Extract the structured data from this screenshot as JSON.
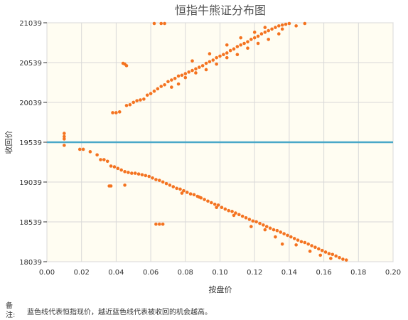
{
  "chart_data": {
    "type": "scatter",
    "title": "恒指牛熊证分布图",
    "xlabel": "按盘价",
    "ylabel": "收回价",
    "xlim": [
      0,
      0.2
    ],
    "ylim": [
      18039,
      21039
    ],
    "xticks": [
      "0.00",
      "0.02",
      "0.04",
      "0.06",
      "0.08",
      "0.10",
      "0.12",
      "0.14",
      "0.16",
      "0.18",
      "0.20"
    ],
    "yticks": [
      "18039",
      "18539",
      "19039",
      "19539",
      "20039",
      "20539",
      "21039"
    ],
    "grid": true,
    "reference_line": {
      "value": 19539,
      "color": "#4aa8c8"
    },
    "colors": {
      "point": "#f47320",
      "plot_bg": "#fffdf2",
      "grid": "#d8d8d8"
    },
    "series": [
      {
        "points": [
          [
            0.01,
            19650
          ],
          [
            0.01,
            19610
          ],
          [
            0.01,
            19580
          ],
          [
            0.01,
            19500
          ],
          [
            0.019,
            19450
          ],
          [
            0.021,
            19450
          ],
          [
            0.025,
            19420
          ],
          [
            0.029,
            19380
          ],
          [
            0.031,
            19320
          ],
          [
            0.033,
            19320
          ],
          [
            0.035,
            19300
          ],
          [
            0.037,
            19240
          ],
          [
            0.039,
            19230
          ],
          [
            0.041,
            19210
          ],
          [
            0.043,
            19190
          ],
          [
            0.045,
            19170
          ],
          [
            0.047,
            19160
          ],
          [
            0.049,
            19150
          ],
          [
            0.051,
            19150
          ],
          [
            0.053,
            19140
          ],
          [
            0.055,
            19130
          ],
          [
            0.057,
            19120
          ],
          [
            0.059,
            19110
          ],
          [
            0.061,
            19090
          ],
          [
            0.063,
            19070
          ],
          [
            0.065,
            19060
          ],
          [
            0.067,
            19040
          ],
          [
            0.069,
            19020
          ],
          [
            0.071,
            19000
          ],
          [
            0.073,
            18980
          ],
          [
            0.075,
            18960
          ],
          [
            0.077,
            18950
          ],
          [
            0.079,
            18930
          ],
          [
            0.081,
            18910
          ],
          [
            0.083,
            18890
          ],
          [
            0.085,
            18880
          ],
          [
            0.087,
            18860
          ],
          [
            0.089,
            18840
          ],
          [
            0.091,
            18820
          ],
          [
            0.093,
            18800
          ],
          [
            0.095,
            18780
          ],
          [
            0.097,
            18760
          ],
          [
            0.099,
            18750
          ],
          [
            0.101,
            18720
          ],
          [
            0.103,
            18700
          ],
          [
            0.105,
            18680
          ],
          [
            0.107,
            18670
          ],
          [
            0.109,
            18650
          ],
          [
            0.111,
            18630
          ],
          [
            0.113,
            18610
          ],
          [
            0.115,
            18590
          ],
          [
            0.117,
            18570
          ],
          [
            0.119,
            18550
          ],
          [
            0.121,
            18540
          ],
          [
            0.123,
            18520
          ],
          [
            0.125,
            18500
          ],
          [
            0.127,
            18480
          ],
          [
            0.129,
            18460
          ],
          [
            0.131,
            18440
          ],
          [
            0.133,
            18430
          ],
          [
            0.135,
            18410
          ],
          [
            0.137,
            18390
          ],
          [
            0.139,
            18370
          ],
          [
            0.141,
            18350
          ],
          [
            0.143,
            18330
          ],
          [
            0.145,
            18310
          ],
          [
            0.147,
            18290
          ],
          [
            0.149,
            18280
          ],
          [
            0.151,
            18260
          ],
          [
            0.153,
            18240
          ],
          [
            0.155,
            18220
          ],
          [
            0.157,
            18200
          ],
          [
            0.159,
            18180
          ],
          [
            0.161,
            18160
          ],
          [
            0.163,
            18140
          ],
          [
            0.165,
            18130
          ],
          [
            0.167,
            18110
          ],
          [
            0.169,
            18090
          ],
          [
            0.171,
            18070
          ],
          [
            0.173,
            18060
          ],
          [
            0.036,
            18990
          ],
          [
            0.037,
            18990
          ],
          [
            0.045,
            19000
          ],
          [
            0.063,
            18510
          ],
          [
            0.065,
            18510
          ],
          [
            0.067,
            18510
          ],
          [
            0.078,
            18900
          ],
          [
            0.088,
            18850
          ],
          [
            0.098,
            18720
          ],
          [
            0.108,
            18620
          ],
          [
            0.118,
            18480
          ],
          [
            0.126,
            18440
          ],
          [
            0.132,
            18350
          ],
          [
            0.136,
            18260
          ],
          [
            0.144,
            18250
          ],
          [
            0.152,
            18170
          ],
          [
            0.158,
            18120
          ],
          [
            0.164,
            18080
          ],
          [
            0.044,
            20530
          ],
          [
            0.045,
            20520
          ],
          [
            0.046,
            20500
          ],
          [
            0.038,
            19910
          ],
          [
            0.04,
            19910
          ],
          [
            0.042,
            19920
          ],
          [
            0.046,
            20000
          ],
          [
            0.048,
            20010
          ],
          [
            0.05,
            20040
          ],
          [
            0.052,
            20060
          ],
          [
            0.054,
            20070
          ],
          [
            0.056,
            20080
          ],
          [
            0.058,
            20130
          ],
          [
            0.06,
            20150
          ],
          [
            0.062,
            20180
          ],
          [
            0.064,
            20210
          ],
          [
            0.066,
            20240
          ],
          [
            0.068,
            20260
          ],
          [
            0.07,
            20300
          ],
          [
            0.072,
            20320
          ],
          [
            0.074,
            20340
          ],
          [
            0.076,
            20370
          ],
          [
            0.078,
            20380
          ],
          [
            0.08,
            20400
          ],
          [
            0.082,
            20420
          ],
          [
            0.084,
            20440
          ],
          [
            0.086,
            20460
          ],
          [
            0.088,
            20480
          ],
          [
            0.09,
            20500
          ],
          [
            0.092,
            20530
          ],
          [
            0.094,
            20550
          ],
          [
            0.096,
            20570
          ],
          [
            0.098,
            20600
          ],
          [
            0.1,
            20620
          ],
          [
            0.102,
            20640
          ],
          [
            0.104,
            20660
          ],
          [
            0.106,
            20690
          ],
          [
            0.108,
            20710
          ],
          [
            0.11,
            20740
          ],
          [
            0.112,
            20760
          ],
          [
            0.114,
            20780
          ],
          [
            0.116,
            20800
          ],
          [
            0.118,
            20830
          ],
          [
            0.12,
            20850
          ],
          [
            0.122,
            20870
          ],
          [
            0.124,
            20900
          ],
          [
            0.126,
            20920
          ],
          [
            0.128,
            20940
          ],
          [
            0.13,
            20960
          ],
          [
            0.132,
            20980
          ],
          [
            0.134,
            21000
          ],
          [
            0.136,
            21010
          ],
          [
            0.138,
            21020
          ],
          [
            0.14,
            21030
          ],
          [
            0.062,
            21030
          ],
          [
            0.066,
            21030
          ],
          [
            0.068,
            21030
          ],
          [
            0.149,
            21030
          ],
          [
            0.072,
            20230
          ],
          [
            0.076,
            20270
          ],
          [
            0.08,
            20350
          ],
          [
            0.086,
            20410
          ],
          [
            0.092,
            20450
          ],
          [
            0.098,
            20520
          ],
          [
            0.104,
            20600
          ],
          [
            0.11,
            20640
          ],
          [
            0.116,
            20720
          ],
          [
            0.122,
            20780
          ],
          [
            0.128,
            20830
          ],
          [
            0.134,
            20900
          ],
          [
            0.084,
            20560
          ],
          [
            0.094,
            20650
          ],
          [
            0.104,
            20760
          ],
          [
            0.112,
            20850
          ],
          [
            0.12,
            20920
          ],
          [
            0.126,
            20980
          ],
          [
            0.136,
            20960
          ],
          [
            0.144,
            21000
          ]
        ]
      }
    ]
  },
  "note": {
    "label": "备\n注:",
    "text": "蓝色线代表恒指现价，越近蓝色线代表被收回的机会越高。"
  }
}
